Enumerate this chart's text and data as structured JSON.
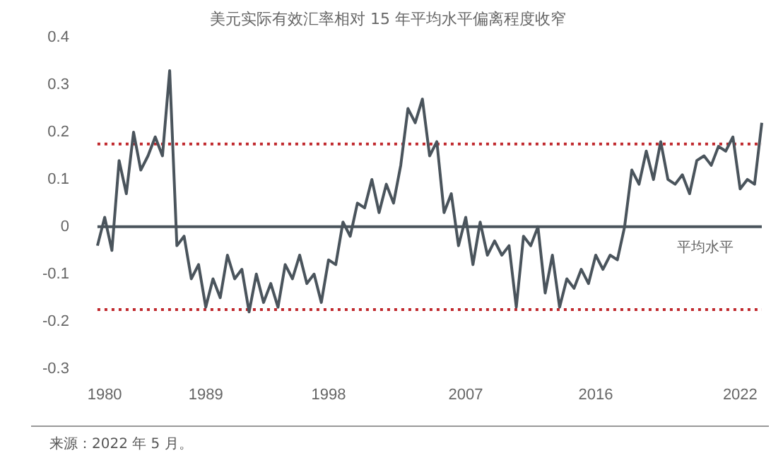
{
  "chart_data": {
    "type": "line",
    "title": "美元实际有效汇率相对 15 年平均水平偏离程度收窄",
    "categories": [
      null,
      "1980",
      null,
      null,
      null,
      null,
      null,
      null,
      null,
      null,
      null,
      null,
      null,
      null,
      null,
      "1989",
      null,
      null,
      null,
      null,
      null,
      null,
      null,
      null,
      null,
      null,
      null,
      null,
      null,
      null,
      null,
      null,
      "1998",
      null,
      null,
      null,
      null,
      null,
      null,
      null,
      null,
      null,
      null,
      null,
      null,
      null,
      null,
      null,
      null,
      null,
      null,
      "2007",
      null,
      null,
      null,
      null,
      null,
      null,
      null,
      null,
      null,
      null,
      null,
      null,
      null,
      null,
      null,
      null,
      null,
      "2016",
      null,
      null,
      null,
      null,
      null,
      null,
      null,
      null,
      null,
      null,
      null,
      null,
      null,
      null,
      null,
      null,
      null,
      null,
      null,
      "2022",
      null,
      null,
      null
    ],
    "series": [
      {
        "color": "#4a545c",
        "values": [
          -0.04,
          0.02,
          -0.05,
          0.14,
          0.07,
          0.2,
          0.12,
          0.15,
          0.19,
          0.15,
          0.33,
          -0.04,
          -0.02,
          -0.11,
          -0.08,
          -0.17,
          -0.11,
          -0.15,
          -0.06,
          -0.11,
          -0.09,
          -0.18,
          -0.1,
          -0.16,
          -0.12,
          -0.17,
          -0.08,
          -0.11,
          -0.06,
          -0.12,
          -0.1,
          -0.16,
          -0.07,
          -0.08,
          0.01,
          -0.02,
          0.05,
          0.04,
          0.1,
          0.03,
          0.09,
          0.05,
          0.13,
          0.25,
          0.22,
          0.27,
          0.15,
          0.18,
          0.03,
          0.07,
          -0.04,
          0.02,
          -0.08,
          0.01,
          -0.06,
          -0.03,
          -0.06,
          -0.04,
          -0.17,
          -0.02,
          -0.04,
          0.0,
          -0.14,
          -0.06,
          -0.17,
          -0.11,
          -0.13,
          -0.09,
          -0.12,
          -0.06,
          -0.09,
          -0.06,
          -0.07,
          0.0,
          0.12,
          0.09,
          0.16,
          0.1,
          0.18,
          0.1,
          0.09,
          0.11,
          0.07,
          0.14,
          0.15,
          0.13,
          0.17,
          0.16,
          0.19,
          0.08,
          0.1,
          0.09,
          0.22
        ]
      }
    ],
    "ylim": [
      -0.3,
      0.4
    ],
    "yticks": [
      -0.3,
      -0.2,
      -0.1,
      0,
      0.1,
      0.2,
      0.3,
      0.4
    ],
    "ref_lines": [
      {
        "axis": "y",
        "value": 0.175,
        "color": "#c0282d",
        "line_style": "dotted"
      },
      {
        "axis": "y",
        "value": -0.175,
        "color": "#c0282d",
        "line_style": "dotted"
      },
      {
        "axis": "y",
        "value": 0,
        "label": "平均水平",
        "color": "#4a545c",
        "line_style": "solid"
      }
    ],
    "annotations": [
      "来源：2022 年 5 月。"
    ],
    "grid": false,
    "legend": false,
    "marker": "none"
  }
}
